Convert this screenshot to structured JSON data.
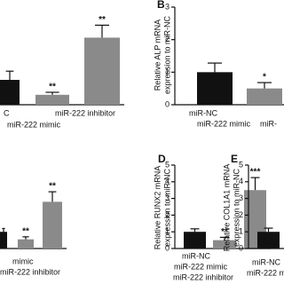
{
  "chart_data": [
    {
      "type": "bar",
      "categories": [
        "C",
        "miR-222 mimic",
        "miR-222 inhibitor"
      ],
      "values": [
        1,
        0.4,
        2.7
      ],
      "errors": [
        0.35,
        0.1,
        0.5
      ],
      "annotations": [
        null,
        "**",
        "**"
      ],
      "colors": [
        "#111111",
        "#8a8a8a",
        "#8a8a8a"
      ],
      "ylim": [
        0,
        4
      ]
    },
    {
      "type": "bar",
      "panel": "B",
      "y_label": [
        "Relative ALP mRNA",
        "expression to miR-NC"
      ],
      "categories": [
        "miR-NC",
        "miR-222 mimic",
        "miR-"
      ],
      "values": [
        1.0,
        0.5,
        null
      ],
      "errors": [
        0.28,
        0.18,
        null
      ],
      "annotations": [
        null,
        "*",
        null
      ],
      "colors": [
        "#111111",
        "#8a8a8a",
        "#8a8a8a"
      ],
      "ylim": [
        0,
        3
      ],
      "yticks": [
        0,
        1,
        2,
        3
      ]
    },
    {
      "type": "bar",
      "categories": [
        null,
        "mimic",
        "miR-222 inhibitor"
      ],
      "values": [
        1,
        0.55,
        2.8
      ],
      "errors": [
        0.2,
        0.15,
        0.6
      ],
      "annotations": [
        null,
        "**",
        "**"
      ],
      "colors": [
        "#111111",
        "#8a8a8a",
        "#8a8a8a"
      ],
      "ylim": [
        0,
        5
      ]
    },
    {
      "type": "bar",
      "panel": "D",
      "y_label": [
        "Relative RUNX2 mRNA",
        "expression to miR-NC"
      ],
      "categories": [
        "miR-NC",
        "miR-222 mimic",
        "miR-222 inhibitor"
      ],
      "values": [
        1.0,
        0.5,
        3.5
      ],
      "errors": [
        0.18,
        0.17,
        0.75
      ],
      "annotations": [
        null,
        "**",
        "***"
      ],
      "colors": [
        "#111111",
        "#8a8a8a",
        "#8a8a8a"
      ],
      "ylim": [
        0,
        5
      ],
      "yticks": [
        0,
        1,
        2,
        3,
        4,
        5
      ]
    },
    {
      "type": "bar",
      "panel": "E",
      "y_label": [
        "Relative COL1A1 mRNA",
        "expression to miR-NC"
      ],
      "categories": [
        "miR-NC",
        "miR-222 m"
      ],
      "values": [
        1.0,
        null
      ],
      "errors": [
        0.22,
        null
      ],
      "annotations": [
        null,
        null
      ],
      "colors": [
        "#111111",
        "#8a8a8a"
      ],
      "ylim": [
        0,
        5
      ],
      "yticks": [
        0,
        1,
        2,
        3,
        4,
        5
      ]
    }
  ]
}
